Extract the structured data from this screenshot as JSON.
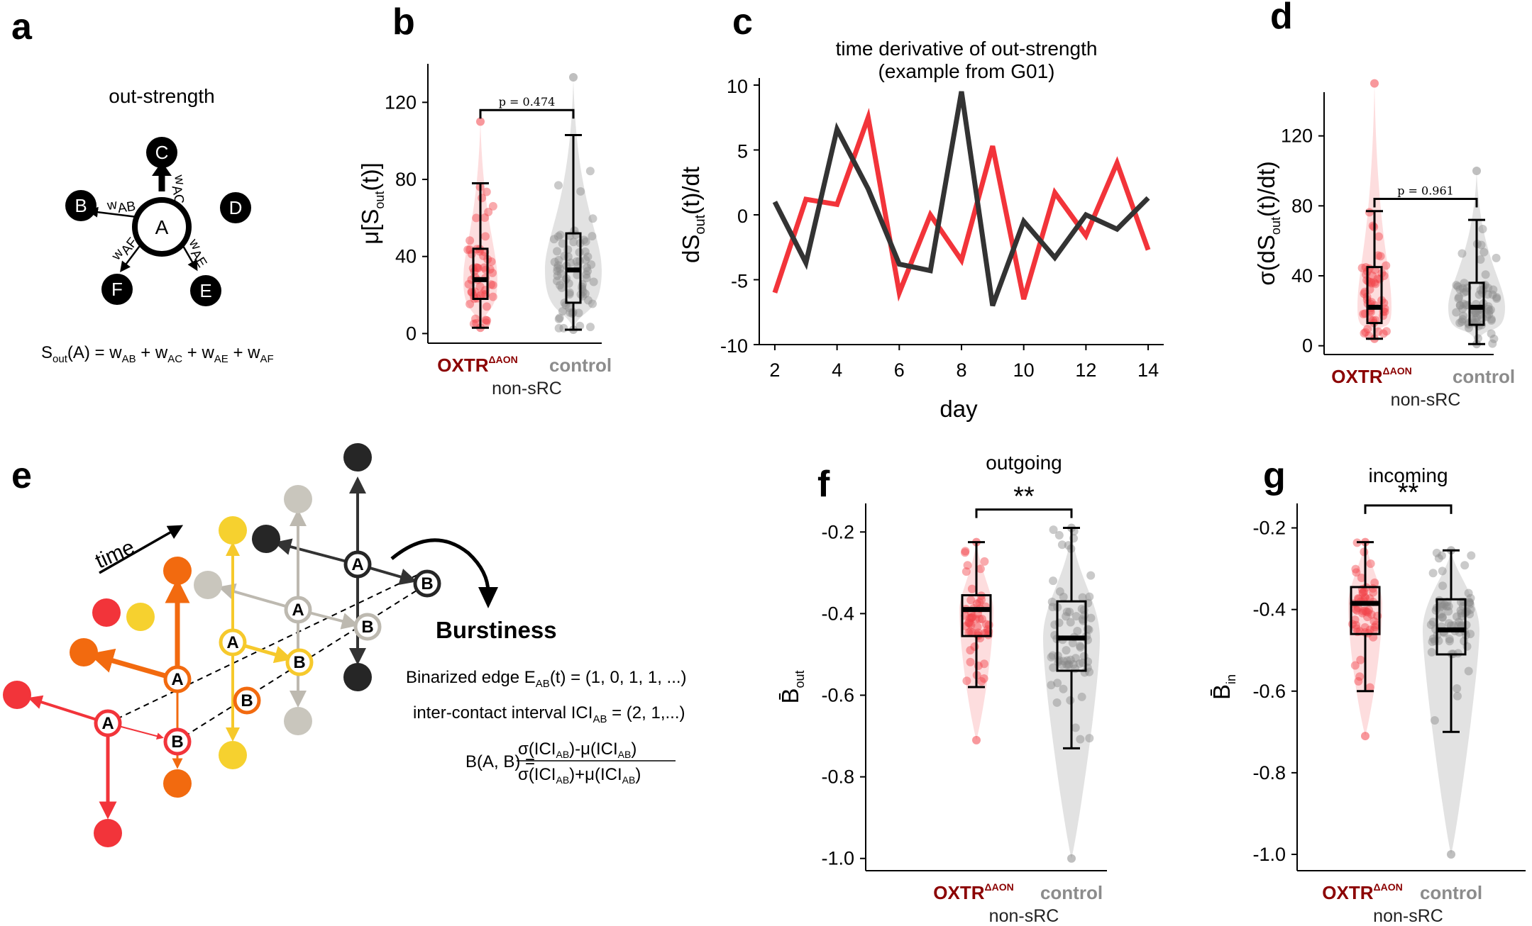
{
  "panel_letters": {
    "a": "a",
    "b": "b",
    "c": "c",
    "d": "d",
    "e": "e",
    "f": "f",
    "g": "g"
  },
  "groups": {
    "oxtr": "OXTR",
    "oxtr_sup": "ΔAON",
    "control": "control",
    "non_src": "non-sRC"
  },
  "colors": {
    "oxtr": "#f2434a",
    "control": "#3a3a3a",
    "control_light": "#bdbdbd",
    "oxtr_text": "#8b0000",
    "control_text": "#8c8c8c"
  },
  "panel_a": {
    "title": "out-strength",
    "center": "A",
    "nodes": [
      "B",
      "C",
      "D",
      "E",
      "F"
    ],
    "weights": {
      "ab": "w",
      "ab_sub": "AB",
      "ac": "w",
      "ac_sub": "AC",
      "af": "w",
      "af_sub": "AF",
      "ae": "w",
      "ae_sub": "AE"
    },
    "formula": {
      "lhs": "S",
      "lhs_sub": "out",
      "lhs_arg": "(A) = w",
      "t1": "AB",
      "p1": " + w",
      "t2": "AC",
      "p2": " + w",
      "t3": "AE",
      "p3": " + w",
      "t4": "AF"
    }
  },
  "panel_e": {
    "time_label": "time",
    "burstiness_title": "Burstiness",
    "binarized_pre": "Binarized edge E",
    "binarized_sub": "AB",
    "binarized_post": "(t) = (1, 0, 1, 1, ...)",
    "ici_pre": "inter-contact interval ICI",
    "ici_sub": "AB",
    "ici_post": " = (2, 1,...)",
    "b_lhs": "B(A, B) =",
    "b_num": "σ(ICI",
    "b_num_sub": "AB",
    "b_num_mid": ")-μ(ICI",
    "b_num_end": ")",
    "b_den": "σ(ICI",
    "b_den_mid": ")+μ(ICI",
    "node_a": "A",
    "node_b": "B"
  },
  "chart_data": [
    {
      "id": "b",
      "type": "violin-box",
      "ylabel": "μ[S",
      "ylabel_sub": "out",
      "ylabel_end": "(t)]",
      "ylim": [
        -5,
        140
      ],
      "yticks": [
        0,
        40,
        80,
        120
      ],
      "categories": [
        "OXTR ΔAON",
        "control"
      ],
      "significance": "p = 0.474",
      "boxes": [
        {
          "name": "OXTR ΔAON",
          "min": 3,
          "q1": 18,
          "median": 28,
          "q3": 44,
          "max": 78
        },
        {
          "name": "control",
          "min": 2,
          "q1": 16,
          "median": 33,
          "q3": 52,
          "max": 103
        }
      ],
      "ranges": [
        [
          3,
          110
        ],
        [
          2,
          133
        ]
      ]
    },
    {
      "id": "c",
      "type": "line",
      "title": "time derivative of out-strength",
      "subtitle": "(example from G01)",
      "xlabel": "day",
      "ylabel": "dS",
      "ylabel_sub": "out",
      "ylabel_end": "(t)/dt",
      "xlim": [
        1.5,
        14.5
      ],
      "ylim": [
        -10,
        10
      ],
      "xticks": [
        2,
        4,
        6,
        8,
        10,
        12,
        14
      ],
      "yticks": [
        -10,
        -5,
        0,
        5,
        10
      ],
      "x": [
        2,
        3,
        4,
        5,
        6,
        7,
        8,
        9,
        10,
        11,
        12,
        13,
        14
      ],
      "series": [
        {
          "color": "#f2343a",
          "values": [
            -6,
            1.2,
            0.8,
            7.5,
            -6,
            0,
            -3.5,
            5.3,
            -6.5,
            1.7,
            -1.6,
            4,
            -2.7
          ]
        },
        {
          "color": "#333333",
          "values": [
            1,
            -3.7,
            6.6,
            2,
            -3.8,
            -4.3,
            9.5,
            -7,
            -0.5,
            -3.3,
            0,
            -1.1,
            1.3
          ]
        }
      ]
    },
    {
      "id": "d",
      "type": "violin-box",
      "ylabel": "σ(dS",
      "ylabel_sub": "out",
      "ylabel_end": "(t)/dt)",
      "ylim": [
        -5,
        145
      ],
      "yticks": [
        0,
        40,
        80,
        120
      ],
      "categories": [
        "OXTR ΔAON",
        "control"
      ],
      "significance": "p = 0.961",
      "boxes": [
        {
          "name": "OXTR ΔAON",
          "min": 4,
          "q1": 13,
          "median": 22,
          "q3": 45,
          "max": 77
        },
        {
          "name": "control",
          "min": 1,
          "q1": 12,
          "median": 22,
          "q3": 36,
          "max": 72
        }
      ],
      "ranges": [
        [
          4,
          150
        ],
        [
          1,
          100
        ]
      ]
    },
    {
      "id": "f",
      "type": "violin-box",
      "title": "outgoing",
      "ylabel": "B̄",
      "ylabel_sub": "out",
      "ylim": [
        -1.03,
        -0.13
      ],
      "yticks": [
        -0.2,
        -0.4,
        -0.6,
        -0.8,
        -1.0
      ],
      "ytick_labels": [
        "-0.2",
        "-0.4",
        "-0.6",
        "-0.8",
        "-1.0"
      ],
      "categories": [
        "OXTR ΔAON",
        "control"
      ],
      "significance": "**",
      "boxes": [
        {
          "name": "OXTR ΔAON",
          "min": -0.58,
          "q1": -0.455,
          "median": -0.39,
          "q3": -0.355,
          "max": -0.225
        },
        {
          "name": "control",
          "min": -0.73,
          "q1": -0.54,
          "median": -0.46,
          "q3": -0.37,
          "max": -0.19
        }
      ],
      "ranges": [
        [
          -0.71,
          -0.225
        ],
        [
          -1.0,
          -0.19
        ]
      ]
    },
    {
      "id": "g",
      "type": "violin-box",
      "title": "incoming",
      "ylabel": "B̄",
      "ylabel_sub": "in",
      "ylim": [
        -1.04,
        -0.14
      ],
      "yticks": [
        -0.2,
        -0.4,
        -0.6,
        -0.8,
        -1.0
      ],
      "ytick_labels": [
        "-0.2",
        "-0.4",
        "-0.6",
        "-0.8",
        "-1.0"
      ],
      "categories": [
        "OXTR ΔAON",
        "control"
      ],
      "significance": "**",
      "boxes": [
        {
          "name": "OXTR ΔAON",
          "min": -0.6,
          "q1": -0.46,
          "median": -0.385,
          "q3": -0.345,
          "max": -0.235
        },
        {
          "name": "control",
          "min": -0.7,
          "q1": -0.51,
          "median": -0.45,
          "q3": -0.375,
          "max": -0.255
        }
      ],
      "ranges": [
        [
          -0.71,
          -0.235
        ],
        [
          -1.0,
          -0.255
        ]
      ]
    }
  ]
}
